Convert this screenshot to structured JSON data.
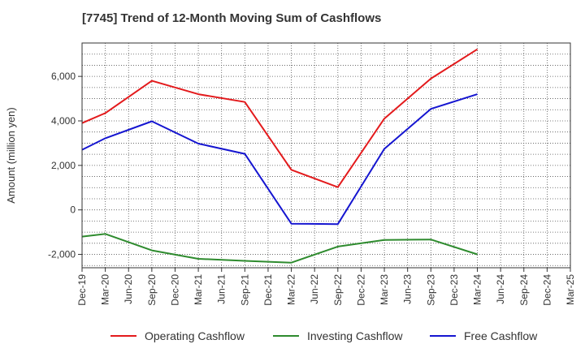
{
  "chart_data": {
    "type": "line",
    "title": "[7745]  Trend of 12-Month Moving Sum of Cashflows",
    "ylabel": "Amount (million yen)",
    "xlabel": "",
    "categories": [
      "Dec-19",
      "Mar-20",
      "Jun-20",
      "Sep-20",
      "Dec-20",
      "Mar-21",
      "Jun-21",
      "Sep-21",
      "Dec-21",
      "Mar-22",
      "Jun-22",
      "Sep-22",
      "Dec-22",
      "Mar-23",
      "Jun-23",
      "Sep-23",
      "Dec-23",
      "Mar-24",
      "Jun-24",
      "Sep-24",
      "Dec-24",
      "Mar-25"
    ],
    "yticks": [
      -2000,
      0,
      2000,
      4000,
      6000
    ],
    "ytick_labels": [
      "-2,000",
      "0",
      "2,000",
      "4,000",
      "6,000"
    ],
    "ylim": [
      -2600,
      7500
    ],
    "grid": true,
    "legend_position": "bottom",
    "series": [
      {
        "name": "Operating Cashflow",
        "color": "#e31a1c",
        "values": [
          3900,
          4350,
          null,
          5800,
          null,
          5200,
          null,
          4850,
          null,
          1800,
          null,
          1020,
          null,
          4100,
          null,
          5900,
          null,
          7220,
          null,
          null,
          null,
          null
        ]
      },
      {
        "name": "Investing Cashflow",
        "color": "#2e8b2e",
        "values": [
          -1200,
          -1080,
          null,
          -1820,
          null,
          -2200,
          null,
          -2290,
          null,
          -2370,
          null,
          -1650,
          null,
          -1350,
          null,
          -1330,
          null,
          -2000,
          null,
          null,
          null,
          null
        ]
      },
      {
        "name": "Free Cashflow",
        "color": "#1515d0",
        "values": [
          2700,
          3220,
          null,
          3980,
          null,
          2980,
          null,
          2520,
          null,
          -620,
          null,
          -640,
          null,
          2740,
          null,
          4540,
          null,
          5200,
          null,
          null,
          null,
          null
        ]
      }
    ]
  }
}
